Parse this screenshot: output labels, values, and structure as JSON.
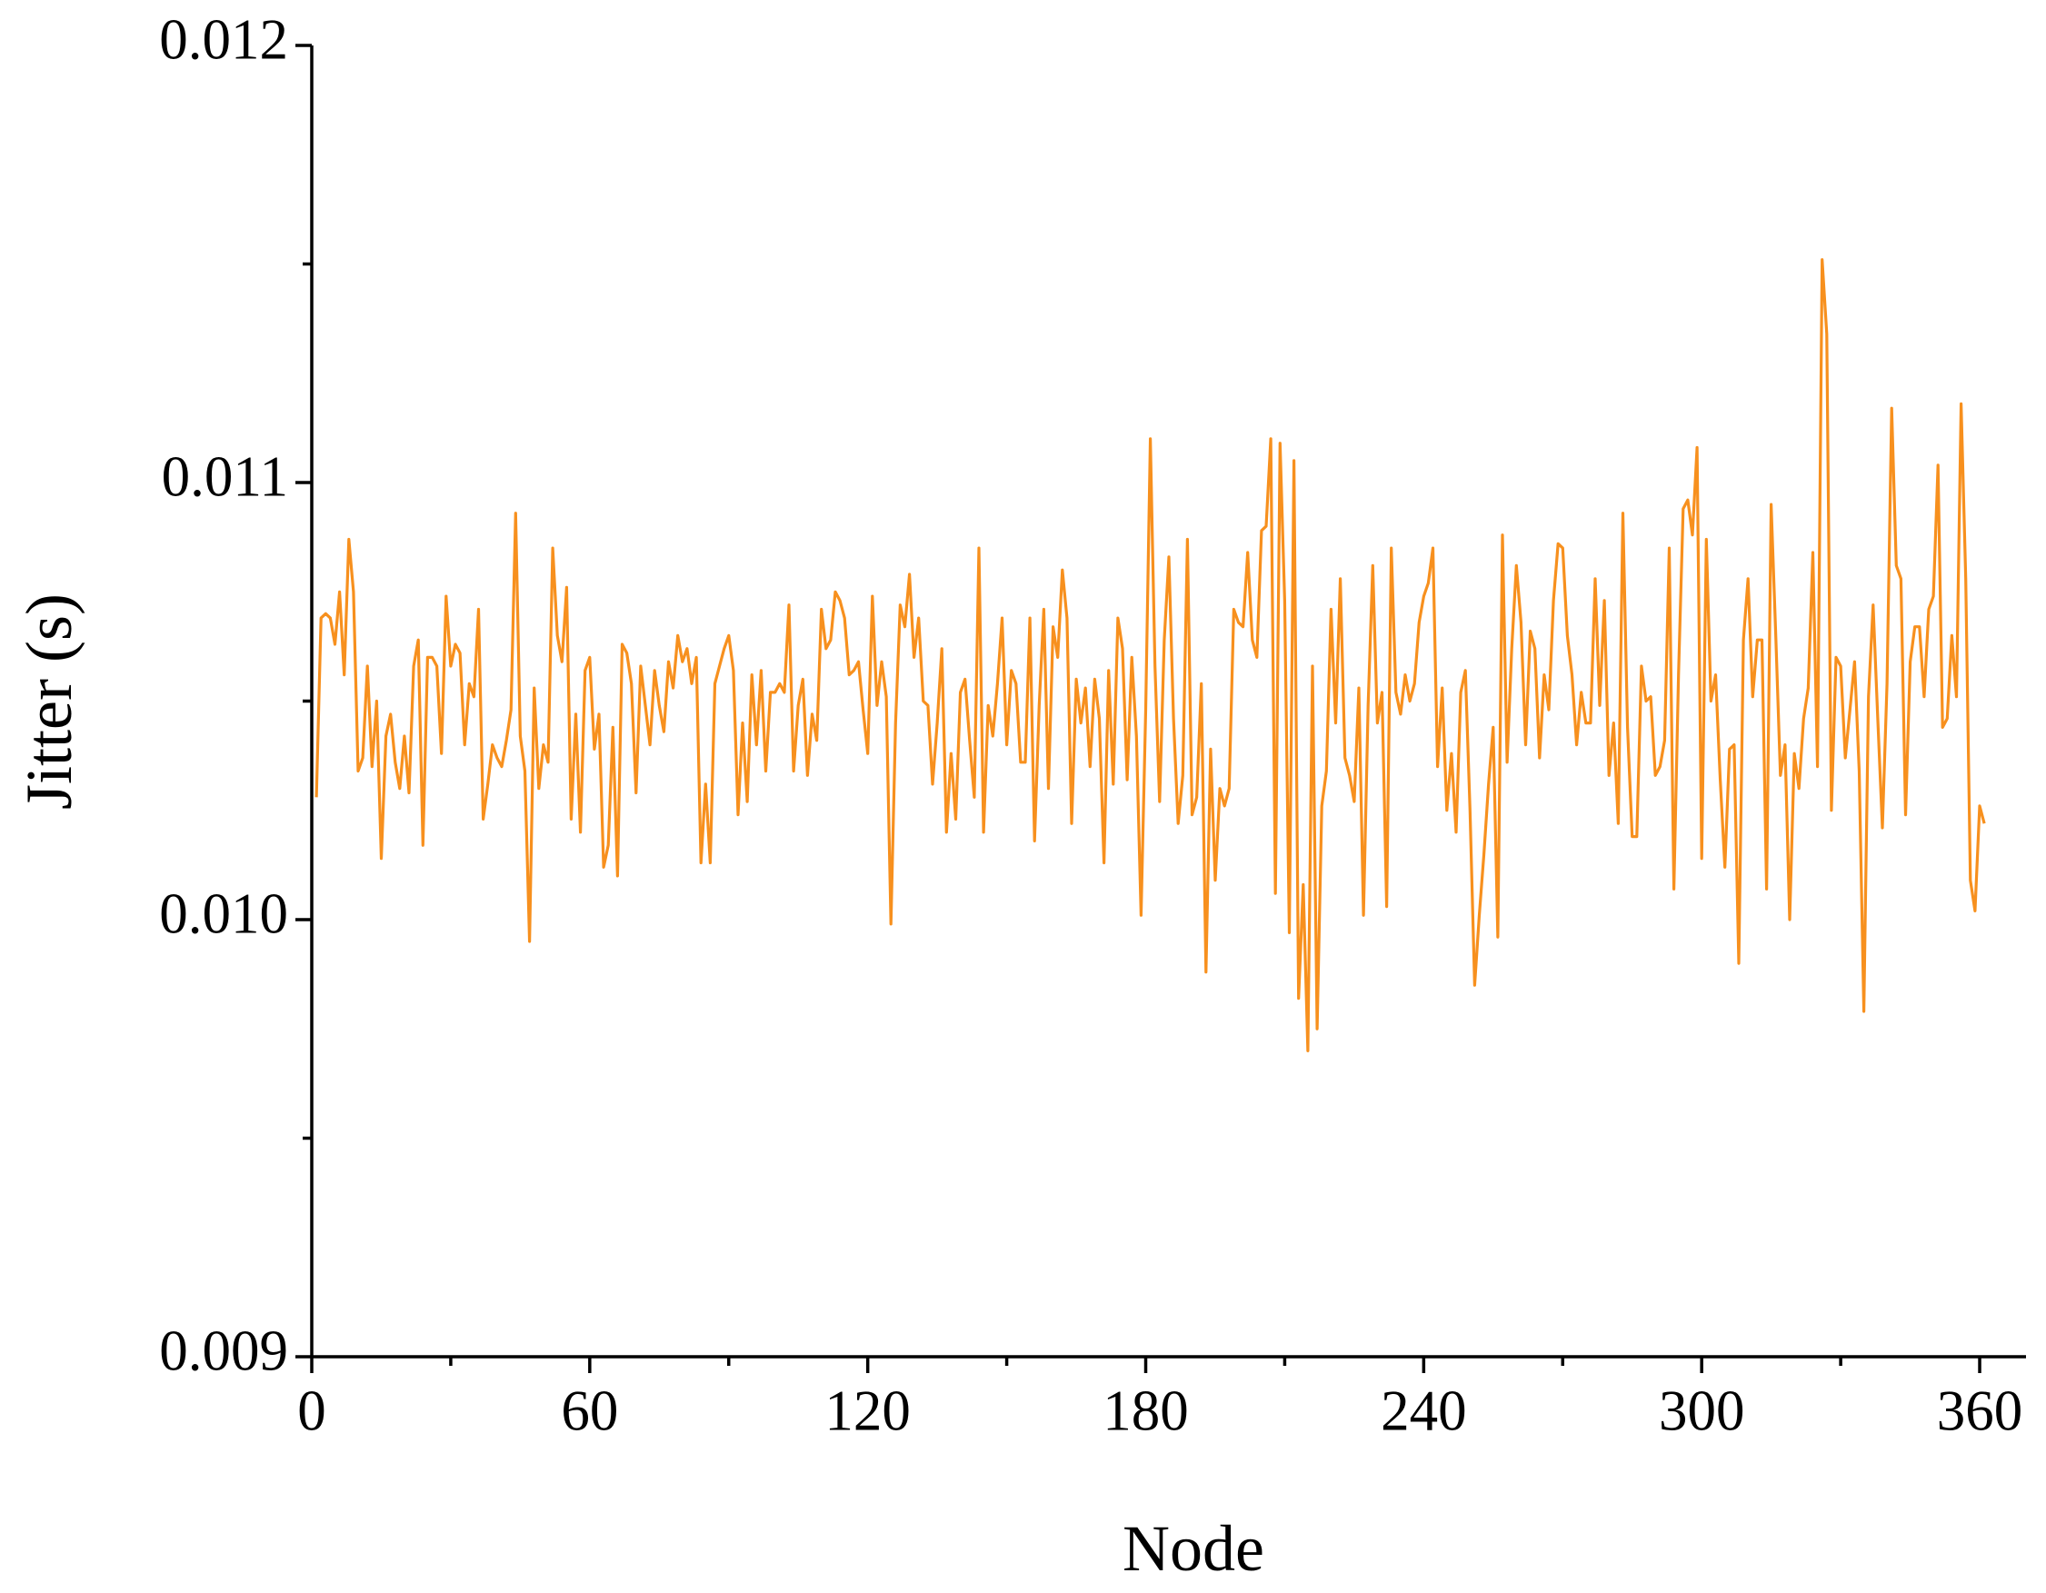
{
  "chart_data": {
    "type": "line",
    "x_label": "Node",
    "y_label": "Jitter (s)",
    "xlim": [
      0,
      370
    ],
    "ylim": [
      0.009,
      0.012
    ],
    "xticks": [
      0,
      60,
      120,
      180,
      240,
      300,
      360
    ],
    "xminorticks": [
      30,
      90,
      150,
      210,
      270,
      330
    ],
    "yticks": [
      {
        "value": 0.009,
        "label": "0.009"
      },
      {
        "value": 0.01,
        "label": "0.010"
      },
      {
        "value": 0.011,
        "label": "0.011"
      },
      {
        "value": 0.012,
        "label": "0.012"
      }
    ],
    "yminorticks": [
      0.0095,
      0.0105,
      0.0115
    ],
    "x": [
      1,
      2,
      3,
      4,
      5,
      6,
      7,
      8,
      9,
      10,
      11,
      12,
      13,
      14,
      15,
      16,
      17,
      18,
      19,
      20,
      21,
      22,
      23,
      24,
      25,
      26,
      27,
      28,
      29,
      30,
      31,
      32,
      33,
      34,
      35,
      36,
      37,
      38,
      39,
      40,
      41,
      42,
      43,
      44,
      45,
      46,
      47,
      48,
      49,
      50,
      51,
      52,
      53,
      54,
      55,
      56,
      57,
      58,
      59,
      60,
      61,
      62,
      63,
      64,
      65,
      66,
      67,
      68,
      69,
      70,
      71,
      72,
      73,
      74,
      75,
      76,
      77,
      78,
      79,
      80,
      81,
      82,
      83,
      84,
      85,
      86,
      87,
      88,
      89,
      90,
      91,
      92,
      93,
      94,
      95,
      96,
      97,
      98,
      99,
      100,
      101,
      102,
      103,
      104,
      105,
      106,
      107,
      108,
      109,
      110,
      111,
      112,
      113,
      114,
      115,
      116,
      117,
      118,
      119,
      120,
      121,
      122,
      123,
      124,
      125,
      126,
      127,
      128,
      129,
      130,
      131,
      132,
      133,
      134,
      135,
      136,
      137,
      138,
      139,
      140,
      141,
      142,
      143,
      144,
      145,
      146,
      147,
      148,
      149,
      150,
      151,
      152,
      153,
      154,
      155,
      156,
      157,
      158,
      159,
      160,
      161,
      162,
      163,
      164,
      165,
      166,
      167,
      168,
      169,
      170,
      171,
      172,
      173,
      174,
      175,
      176,
      177,
      178,
      179,
      180,
      181,
      182,
      183,
      184,
      185,
      186,
      187,
      188,
      189,
      190,
      191,
      192,
      193,
      194,
      195,
      196,
      197,
      198,
      199,
      200,
      201,
      202,
      203,
      204,
      205,
      206,
      207,
      208,
      209,
      210,
      211,
      212,
      213,
      214,
      215,
      216,
      217,
      218,
      219,
      220,
      221,
      222,
      223,
      224,
      225,
      226,
      227,
      228,
      229,
      230,
      231,
      232,
      233,
      234,
      235,
      236,
      237,
      238,
      239,
      240,
      241,
      242,
      243,
      244,
      245,
      246,
      247,
      248,
      249,
      250,
      251,
      252,
      253,
      254,
      255,
      256,
      257,
      258,
      259,
      260,
      261,
      262,
      263,
      264,
      265,
      266,
      267,
      268,
      269,
      270,
      271,
      272,
      273,
      274,
      275,
      276,
      277,
      278,
      279,
      280,
      281,
      282,
      283,
      284,
      285,
      286,
      287,
      288,
      289,
      290,
      291,
      292,
      293,
      294,
      295,
      296,
      297,
      298,
      299,
      300,
      301,
      302,
      303,
      304,
      305,
      306,
      307,
      308,
      309,
      310,
      311,
      312,
      313,
      314,
      315,
      316,
      317,
      318,
      319,
      320,
      321,
      322,
      323,
      324,
      325,
      326,
      327,
      328,
      329,
      330,
      331,
      332,
      333,
      334,
      335,
      336,
      337,
      338,
      339,
      340,
      341,
      342,
      343,
      344,
      345,
      346,
      347,
      348,
      349,
      350,
      351,
      352,
      353,
      354,
      355,
      356,
      357,
      358,
      359,
      360,
      361
    ],
    "series": [
      {
        "name": "Jitter",
        "color": "#f7901e",
        "values": [
          0.01028,
          0.01069,
          0.0107,
          0.01069,
          0.01063,
          0.01075,
          0.01056,
          0.01087,
          0.01075,
          0.01034,
          0.01037,
          0.01058,
          0.01035,
          0.0105,
          0.01014,
          0.01042,
          0.01047,
          0.01036,
          0.0103,
          0.01042,
          0.01029,
          0.01058,
          0.01064,
          0.01017,
          0.0106,
          0.0106,
          0.01058,
          0.01038,
          0.01074,
          0.01058,
          0.01063,
          0.01061,
          0.0104,
          0.01054,
          0.01051,
          0.01071,
          0.01023,
          0.01031,
          0.0104,
          0.01037,
          0.01035,
          0.01041,
          0.01048,
          0.01093,
          0.01042,
          0.01034,
          0.00995,
          0.01053,
          0.0103,
          0.0104,
          0.01036,
          0.01085,
          0.01065,
          0.01059,
          0.01076,
          0.01023,
          0.01047,
          0.0102,
          0.01057,
          0.0106,
          0.01039,
          0.01047,
          0.01012,
          0.01017,
          0.01044,
          0.0101,
          0.01063,
          0.01061,
          0.01054,
          0.01029,
          0.01058,
          0.01049,
          0.0104,
          0.01057,
          0.01049,
          0.01043,
          0.01059,
          0.01053,
          0.01065,
          0.01059,
          0.01062,
          0.01054,
          0.0106,
          0.01013,
          0.01031,
          0.01013,
          0.01054,
          0.01058,
          0.01062,
          0.01065,
          0.01057,
          0.01024,
          0.01045,
          0.01027,
          0.01056,
          0.0104,
          0.01057,
          0.01034,
          0.01052,
          0.01052,
          0.01054,
          0.01052,
          0.01072,
          0.01034,
          0.01049,
          0.01055,
          0.01033,
          0.01047,
          0.01041,
          0.01071,
          0.01062,
          0.01064,
          0.01075,
          0.01073,
          0.01069,
          0.01056,
          0.01057,
          0.01059,
          0.01048,
          0.01038,
          0.01074,
          0.01049,
          0.01059,
          0.01051,
          0.00999,
          0.01045,
          0.01072,
          0.01067,
          0.01079,
          0.0106,
          0.01069,
          0.0105,
          0.01049,
          0.01031,
          0.01045,
          0.01062,
          0.0102,
          0.01038,
          0.01023,
          0.01052,
          0.01055,
          0.01041,
          0.01028,
          0.01085,
          0.0102,
          0.01049,
          0.01042,
          0.01054,
          0.01069,
          0.0104,
          0.01057,
          0.01054,
          0.01036,
          0.01036,
          0.01069,
          0.01018,
          0.01049,
          0.01071,
          0.0103,
          0.01067,
          0.0106,
          0.0108,
          0.01069,
          0.01022,
          0.01055,
          0.01045,
          0.01053,
          0.01035,
          0.01055,
          0.01046,
          0.01013,
          0.01057,
          0.01031,
          0.01069,
          0.01062,
          0.01032,
          0.0106,
          0.01042,
          0.01001,
          0.01048,
          0.0111,
          0.01058,
          0.01027,
          0.01064,
          0.01083,
          0.01046,
          0.01022,
          0.01033,
          0.01087,
          0.01024,
          0.01028,
          0.01054,
          0.00988,
          0.01039,
          0.01009,
          0.0103,
          0.01026,
          0.0103,
          0.01071,
          0.01068,
          0.01067,
          0.01084,
          0.01064,
          0.0106,
          0.01089,
          0.0109,
          0.0111,
          0.01006,
          0.01109,
          0.01073,
          0.00997,
          0.01105,
          0.00982,
          0.01008,
          0.0097,
          0.01058,
          0.00975,
          0.01026,
          0.01034,
          0.01071,
          0.01045,
          0.01078,
          0.01037,
          0.01033,
          0.01027,
          0.01053,
          0.01001,
          0.01049,
          0.01081,
          0.01045,
          0.01052,
          0.01003,
          0.01085,
          0.01052,
          0.01047,
          0.01056,
          0.0105,
          0.01054,
          0.01068,
          0.01074,
          0.01077,
          0.01085,
          0.01035,
          0.01053,
          0.01025,
          0.01038,
          0.0102,
          0.01052,
          0.01057,
          0.01025,
          0.00985,
          0.01001,
          0.01015,
          0.01031,
          0.01044,
          0.00996,
          0.01088,
          0.01036,
          0.01062,
          0.01081,
          0.01068,
          0.0104,
          0.01066,
          0.01062,
          0.01037,
          0.01056,
          0.01048,
          0.01073,
          0.01086,
          0.01085,
          0.01065,
          0.01056,
          0.0104,
          0.01052,
          0.01045,
          0.01045,
          0.01078,
          0.01049,
          0.01073,
          0.01033,
          0.01045,
          0.01022,
          0.01093,
          0.01044,
          0.01019,
          0.01019,
          0.01058,
          0.0105,
          0.01051,
          0.01033,
          0.01035,
          0.01041,
          0.01085,
          0.01007,
          0.01056,
          0.01094,
          0.01096,
          0.01088,
          0.01108,
          0.01014,
          0.01087,
          0.0105,
          0.01056,
          0.01032,
          0.01012,
          0.01039,
          0.0104,
          0.0099,
          0.01064,
          0.01078,
          0.01051,
          0.01064,
          0.01064,
          0.01007,
          0.01095,
          0.01065,
          0.01033,
          0.0104,
          0.01,
          0.01038,
          0.0103,
          0.01046,
          0.01053,
          0.01084,
          0.01035,
          0.01151,
          0.01134,
          0.01025,
          0.0106,
          0.01058,
          0.01037,
          0.01048,
          0.01059,
          0.01034,
          0.00979,
          0.01051,
          0.01072,
          0.01046,
          0.01021,
          0.01054,
          0.01117,
          0.01081,
          0.01078,
          0.01024,
          0.01059,
          0.01067,
          0.01067,
          0.01051,
          0.01071,
          0.01074,
          0.01104,
          0.01044,
          0.01046,
          0.01065,
          0.01051,
          0.01118,
          0.01078,
          0.01009,
          0.01002,
          0.01026,
          0.01022
        ]
      }
    ]
  }
}
